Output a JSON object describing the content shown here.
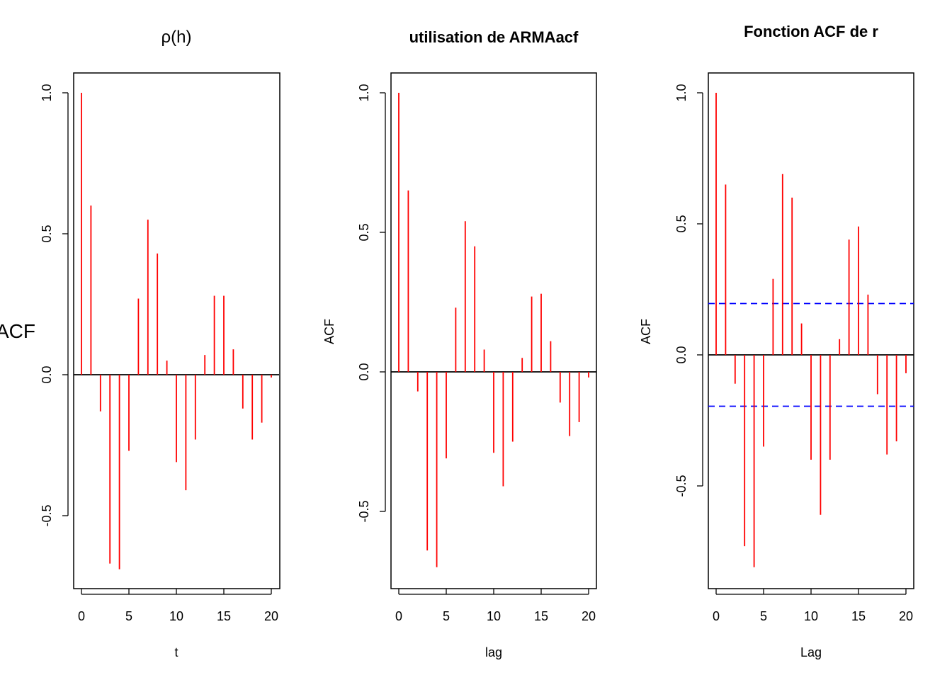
{
  "figure": {
    "background": "#ffffff",
    "bar_color": "#ff0000",
    "ci_color": "#0000ff"
  },
  "chart_data": [
    {
      "type": "bar",
      "title": "ρ(h)",
      "xlabel": "t",
      "ylabel": "ACF",
      "xlim": [
        0,
        20
      ],
      "ylim": [
        -0.75,
        1.05
      ],
      "xticks": [
        0,
        5,
        10,
        15,
        20
      ],
      "yticks": [
        -0.5,
        0.0,
        0.5,
        1.0
      ],
      "ytick_labels": [
        "-0.5",
        "0.0",
        "0.5",
        "1.0"
      ],
      "x": [
        0,
        1,
        2,
        3,
        4,
        5,
        6,
        7,
        8,
        9,
        10,
        11,
        12,
        13,
        14,
        15,
        16,
        17,
        18,
        19,
        20
      ],
      "values": [
        1.0,
        0.6,
        -0.13,
        -0.67,
        -0.69,
        -0.27,
        0.27,
        0.55,
        0.43,
        0.05,
        -0.31,
        -0.41,
        -0.23,
        0.07,
        0.28,
        0.28,
        0.09,
        -0.12,
        -0.23,
        -0.17,
        -0.01
      ],
      "confidence_band": null
    },
    {
      "type": "bar",
      "title": "utilisation de ARMAacf",
      "xlabel": "lag",
      "ylabel": "ACF",
      "xlim": [
        0,
        20
      ],
      "ylim": [
        -0.77,
        1.0
      ],
      "xticks": [
        0,
        5,
        10,
        15,
        20
      ],
      "yticks": [
        -0.5,
        0.0,
        0.5,
        1.0
      ],
      "ytick_labels": [
        "-0.5",
        "0.0",
        "0.5",
        "1.0"
      ],
      "x": [
        0,
        1,
        2,
        3,
        4,
        5,
        6,
        7,
        8,
        9,
        10,
        11,
        12,
        13,
        14,
        15,
        16,
        17,
        18,
        19,
        20
      ],
      "values": [
        1.0,
        0.65,
        -0.07,
        -0.64,
        -0.7,
        -0.31,
        0.23,
        0.54,
        0.45,
        0.08,
        -0.29,
        -0.41,
        -0.25,
        0.05,
        0.27,
        0.28,
        0.11,
        -0.11,
        -0.23,
        -0.18,
        -0.02
      ],
      "confidence_band": null
    },
    {
      "type": "bar",
      "title": "Fonction ACF de r",
      "xlabel": "Lag",
      "ylabel": "ACF",
      "xlim": [
        0,
        20
      ],
      "ylim": [
        -0.88,
        1.05
      ],
      "xticks": [
        0,
        5,
        10,
        15,
        20
      ],
      "yticks": [
        -0.5,
        0.0,
        0.5,
        1.0
      ],
      "ytick_labels": [
        "-0.5",
        "0.0",
        "0.5",
        "1.0"
      ],
      "x": [
        0,
        1,
        2,
        3,
        4,
        5,
        6,
        7,
        8,
        9,
        10,
        11,
        12,
        13,
        14,
        15,
        16,
        17,
        18,
        19,
        20
      ],
      "values": [
        1.0,
        0.65,
        -0.11,
        -0.73,
        -0.81,
        -0.35,
        0.29,
        0.69,
        0.6,
        0.12,
        -0.4,
        -0.61,
        -0.4,
        0.06,
        0.44,
        0.49,
        0.23,
        -0.15,
        -0.38,
        -0.33,
        -0.07
      ],
      "confidence_band": [
        -0.196,
        0.196
      ]
    }
  ]
}
